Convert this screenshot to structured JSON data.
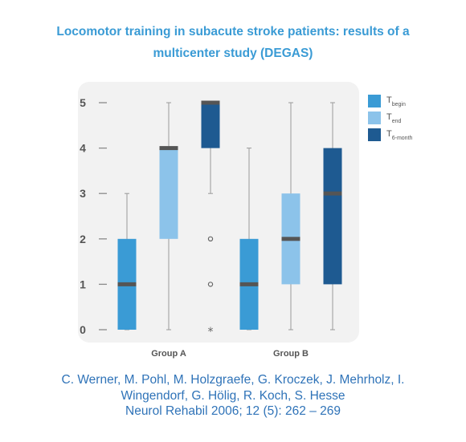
{
  "title_lines": [
    "Locomotor training in subacute stroke patients: results of a",
    "multicenter study (DEGAS)"
  ],
  "colors": {
    "title": "#3a9bd5",
    "citation": "#2f73b8",
    "t_begin": "#3a9bd5",
    "t_end": "#8cc3ea",
    "t_6month": "#1e5a91",
    "median": "#555555",
    "whisker": "#999999"
  },
  "chart_data": {
    "type": "boxplot",
    "title": "Locomotor training in subacute stroke patients: results of a multicenter study (DEGAS)",
    "ylim": [
      0,
      5
    ],
    "y_ticks": [
      "0",
      "1",
      "2",
      "3",
      "4",
      "5"
    ],
    "categories": [
      "Group A",
      "Group B"
    ],
    "legend": [
      {
        "base": "T",
        "sub": "begin"
      },
      {
        "base": "T",
        "sub": "end"
      },
      {
        "base": "T",
        "sub": "6-month"
      }
    ],
    "legend_position": "top-right",
    "series": [
      {
        "name": "Tbegin",
        "color": "#3a9bd5",
        "boxes": [
          {
            "whisker_low": 0,
            "q1": 0,
            "median": 1,
            "q3": 2,
            "whisker_high": 3,
            "outliers": []
          },
          {
            "whisker_low": 0,
            "q1": 0,
            "median": 1,
            "q3": 2,
            "whisker_high": 4,
            "outliers": []
          }
        ]
      },
      {
        "name": "Tend",
        "color": "#8cc3ea",
        "boxes": [
          {
            "whisker_low": 0,
            "q1": 2,
            "median": 4,
            "q3": 4,
            "whisker_high": 5,
            "outliers": []
          },
          {
            "whisker_low": 0,
            "q1": 1,
            "median": 2,
            "q3": 3,
            "whisker_high": 5,
            "outliers": []
          }
        ]
      },
      {
        "name": "T6-month",
        "color": "#1e5a91",
        "boxes": [
          {
            "whisker_low": 3,
            "q1": 4,
            "median": 5,
            "q3": 5,
            "whisker_high": 5,
            "outliers": [
              {
                "value": 2,
                "marker": "circle"
              },
              {
                "value": 1,
                "marker": "circle"
              },
              {
                "value": 0,
                "marker": "star"
              }
            ]
          },
          {
            "whisker_low": 0,
            "q1": 1,
            "median": 3,
            "q3": 4,
            "whisker_high": 5,
            "outliers": []
          }
        ]
      }
    ]
  },
  "citation_lines": [
    "C. Werner, M. Pohl, M. Holzgraefe, G. Kroczek, J. Mehrholz, I.",
    "Wingendorf, G. Hölig, R. Koch, S. Hesse",
    "Neurol Rehabil 2006; 12 (5): 262 – 269"
  ]
}
